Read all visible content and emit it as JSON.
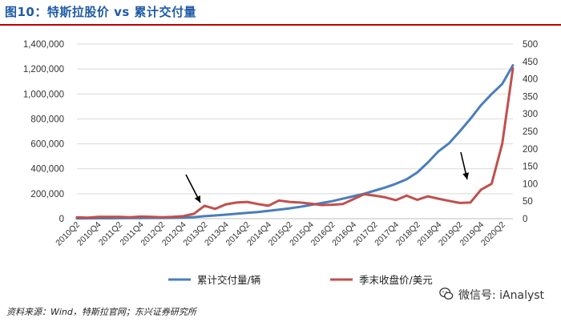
{
  "header": {
    "title": "图10：特斯拉股价 vs 累计交付量"
  },
  "footer": {
    "source": "资料来源：Wind，特斯拉官网；东兴证券研究所",
    "watermark": "微信号: iAnalyst"
  },
  "chart_data": {
    "type": "line",
    "title": "图10：特斯拉股价 vs 累计交付量",
    "categories": [
      "2010Q2",
      "2010Q3",
      "2010Q4",
      "2011Q1",
      "2011Q2",
      "2011Q3",
      "2011Q4",
      "2012Q1",
      "2012Q2",
      "2012Q3",
      "2012Q4",
      "2013Q1",
      "2013Q2",
      "2013Q3",
      "2013Q4",
      "2014Q1",
      "2014Q2",
      "2014Q3",
      "2014Q4",
      "2015Q1",
      "2015Q2",
      "2015Q3",
      "2015Q4",
      "2016Q1",
      "2016Q2",
      "2016Q3",
      "2016Q4",
      "2017Q1",
      "2017Q2",
      "2017Q3",
      "2017Q4",
      "2018Q1",
      "2018Q2",
      "2018Q3",
      "2018Q4",
      "2019Q1",
      "2019Q2",
      "2019Q3",
      "2019Q4",
      "2020Q1",
      "2020Q2",
      "2020Q3"
    ],
    "x_tick_labels": [
      "2010Q2",
      "2010Q4",
      "2011Q2",
      "2011Q4",
      "2012Q2",
      "2012Q4",
      "2013Q2",
      "2013Q4",
      "2014Q2",
      "2014Q4",
      "2015Q2",
      "2015Q4",
      "2016Q2",
      "2016Q4",
      "2017Q2",
      "2017Q4",
      "2018Q2",
      "2018Q4",
      "2019Q2",
      "2019Q4",
      "2020Q2"
    ],
    "y_left_ticks": [
      "0",
      "200,000",
      "400,000",
      "600,000",
      "800,000",
      "1,000,000",
      "1,200,000",
      "1,400,000"
    ],
    "y_right_ticks": [
      "0",
      "50",
      "100",
      "150",
      "200",
      "250",
      "300",
      "350",
      "400",
      "450",
      "500"
    ],
    "ylim_left": [
      0,
      1400000
    ],
    "ylim_right": [
      0,
      500
    ],
    "series": [
      {
        "name": "累计交付量/辆",
        "axis": "left",
        "color": "#4a7ebb",
        "values": [
          2000,
          2500,
          3000,
          3500,
          4000,
          4500,
          5000,
          5500,
          6000,
          6500,
          7500,
          12000,
          20000,
          26000,
          32000,
          39000,
          46000,
          53000,
          62000,
          72000,
          83000,
          95000,
          110000,
          125000,
          140000,
          160000,
          180000,
          200000,
          225000,
          250000,
          280000,
          315000,
          370000,
          450000,
          540000,
          605000,
          700000,
          800000,
          910000,
          1000000,
          1080000,
          1230000
        ]
      },
      {
        "name": "季末收盘价/美元",
        "axis": "right",
        "color": "#c0504d",
        "values": [
          4,
          3,
          5,
          5,
          5,
          4,
          6,
          5,
          4,
          5,
          7,
          14,
          37,
          28,
          41,
          46,
          48,
          42,
          37,
          52,
          48,
          46,
          43,
          39,
          40,
          42,
          56,
          70,
          66,
          61,
          53,
          66,
          54,
          64,
          57,
          51,
          45,
          46,
          83,
          100,
          215,
          430
        ]
      }
    ]
  }
}
